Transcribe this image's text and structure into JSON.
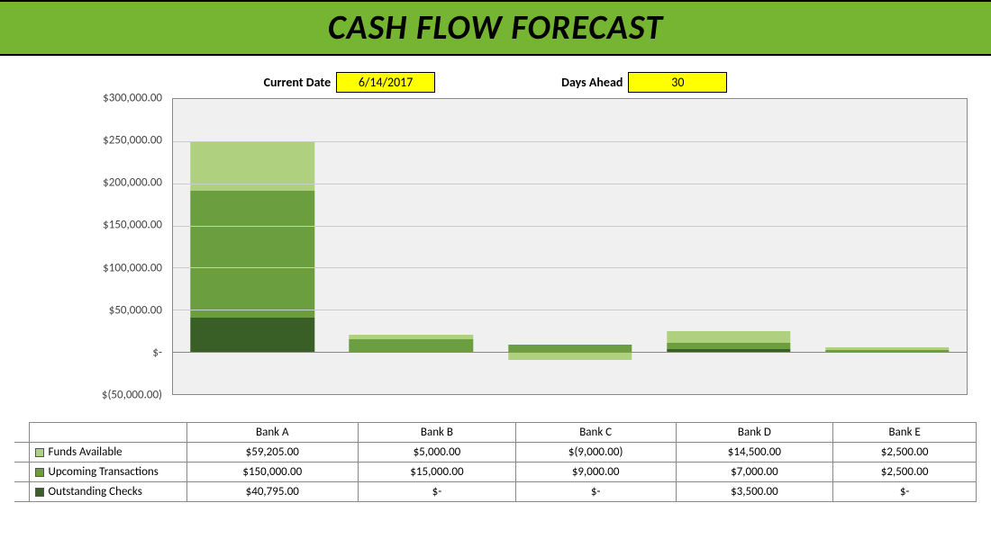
{
  "title": "CASH FLOW FORECAST",
  "title_bar_color": "#76b531",
  "inputs": {
    "current_date_label": "Current Date",
    "current_date_value": "6/14/2017",
    "days_ahead_label": "Days Ahead",
    "days_ahead_value": "30",
    "input_bg": "#ffff00",
    "label_fontsize": 14
  },
  "chart": {
    "type": "stacked-bar",
    "background_color": "#f0f0f0",
    "grid_color": "#cccccc",
    "axis_color": "#888888",
    "ymin": -50000,
    "ymax": 300000,
    "ytick_step": 50000,
    "ytick_labels": [
      "$(50,000.00)",
      "$-",
      "$50,000.00",
      "$100,000.00",
      "$150,000.00",
      "$200,000.00",
      "$250,000.00",
      "$300,000.00"
    ],
    "categories": [
      "Bank A",
      "Bank B",
      "Bank C",
      "Bank D",
      "Bank E"
    ],
    "series": [
      {
        "name": "Outstanding Checks",
        "color": "#3a5f26",
        "values": [
          40795,
          0,
          0,
          3500,
          0
        ],
        "display": [
          "$40,795.00",
          "$-",
          "$-",
          "$3,500.00",
          "$-"
        ]
      },
      {
        "name": "Upcoming Transactions",
        "color": "#6b9e3f",
        "values": [
          150000,
          15000,
          9000,
          7000,
          2500
        ],
        "display": [
          "$150,000.00",
          "$15,000.00",
          "$9,000.00",
          "$7,000.00",
          "$2,500.00"
        ]
      },
      {
        "name": "Funds Available",
        "color": "#aed07f",
        "values": [
          59205,
          5000,
          -9000,
          14500,
          2500
        ],
        "display": [
          "$59,205.00",
          "$5,000.00",
          "$(9,000.00)",
          "$14,500.00",
          "$2,500.00"
        ]
      }
    ],
    "bar_width_pct": 78,
    "label_fontsize": 13
  }
}
